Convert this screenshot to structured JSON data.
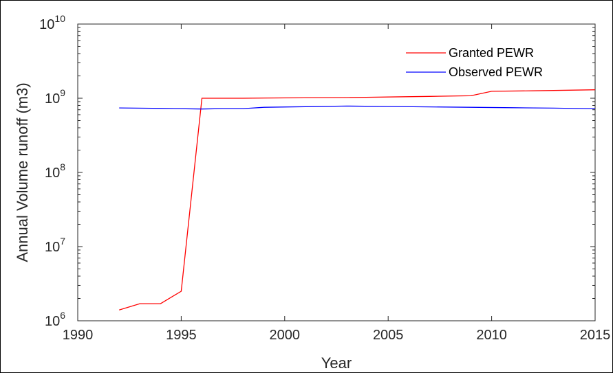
{
  "chart_data": {
    "type": "line",
    "title": "",
    "xlabel": "Year",
    "ylabel": "Annual Volume runoff (m3)",
    "xlim": [
      1990,
      2015
    ],
    "ylim": [
      1000000,
      10000000000
    ],
    "yscale": "log",
    "x_ticks": [
      1990,
      1995,
      2000,
      2005,
      2010,
      2015
    ],
    "x_tick_labels": [
      "1990",
      "1995",
      "2000",
      "2005",
      "2010",
      "2015"
    ],
    "y_ticks": [
      1000000,
      10000000,
      100000000,
      1000000000,
      10000000000
    ],
    "y_tick_labels": [
      {
        "base": "10",
        "exp": "6"
      },
      {
        "base": "10",
        "exp": "7"
      },
      {
        "base": "10",
        "exp": "8"
      },
      {
        "base": "10",
        "exp": "9"
      },
      {
        "base": "10",
        "exp": "10"
      }
    ],
    "grid": false,
    "legend_position": "top-right",
    "series": [
      {
        "name": "Granted PEWR",
        "color": "#ff0000",
        "x": [
          1992,
          1993,
          1994,
          1995,
          1996,
          1998,
          2000,
          2003,
          2005,
          2007,
          2009,
          2010,
          2012,
          2015
        ],
        "y": [
          1400000,
          1700000,
          1700000,
          2500000,
          1000000000,
          1000000000,
          1010000000,
          1020000000,
          1040000000,
          1060000000,
          1080000000,
          1240000000,
          1260000000,
          1300000000
        ]
      },
      {
        "name": "Observed PEWR",
        "color": "#0000ff",
        "x": [
          1992,
          1994,
          1996,
          1997,
          1998,
          1999,
          2001,
          2003,
          2005,
          2007,
          2009,
          2011,
          2013,
          2015
        ],
        "y": [
          740000000,
          730000000,
          715000000,
          725000000,
          725000000,
          755000000,
          770000000,
          785000000,
          775000000,
          765000000,
          755000000,
          745000000,
          735000000,
          720000000
        ]
      }
    ]
  }
}
